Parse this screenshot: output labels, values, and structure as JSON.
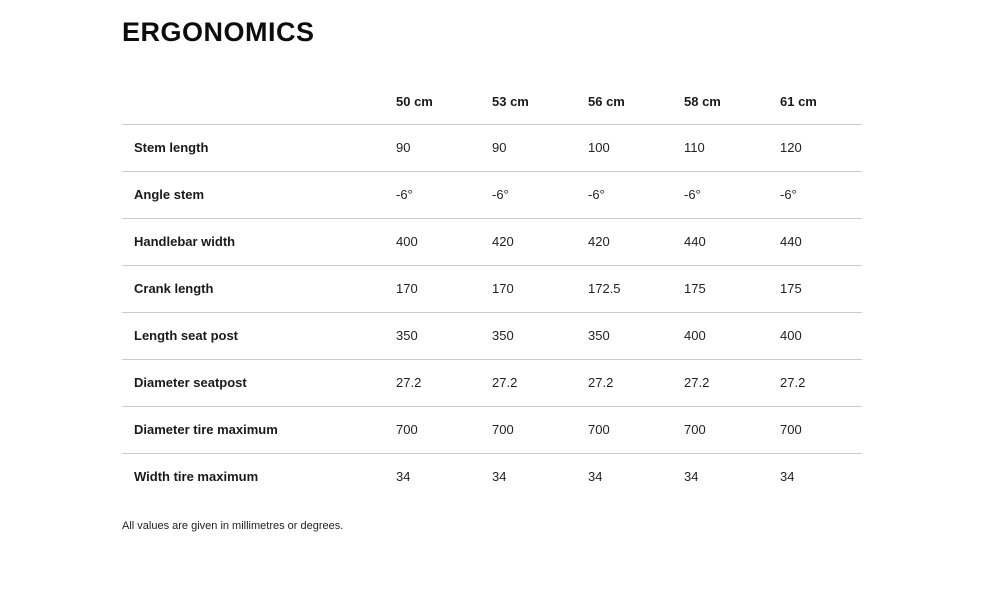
{
  "page": {
    "title": "ERGONOMICS",
    "footnote": "All values are given in millimetres or degrees."
  },
  "table": {
    "columns": [
      "50 cm",
      "53 cm",
      "56 cm",
      "58 cm",
      "61 cm"
    ],
    "rows": [
      {
        "label": "Stem length",
        "values": [
          "90",
          "90",
          "100",
          "110",
          "120"
        ]
      },
      {
        "label": "Angle stem",
        "values": [
          "-6°",
          "-6°",
          "-6°",
          "-6°",
          "-6°"
        ]
      },
      {
        "label": "Handlebar width",
        "values": [
          "400",
          "420",
          "420",
          "440",
          "440"
        ]
      },
      {
        "label": "Crank length",
        "values": [
          "170",
          "170",
          "172.5",
          "175",
          "175"
        ]
      },
      {
        "label": "Length seat post",
        "values": [
          "350",
          "350",
          "350",
          "400",
          "400"
        ]
      },
      {
        "label": "Diameter seatpost",
        "values": [
          "27.2",
          "27.2",
          "27.2",
          "27.2",
          "27.2"
        ]
      },
      {
        "label": "Diameter tire maximum",
        "values": [
          "700",
          "700",
          "700",
          "700",
          "700"
        ]
      },
      {
        "label": "Width tire maximum",
        "values": [
          "34",
          "34",
          "34",
          "34",
          "34"
        ]
      }
    ]
  }
}
